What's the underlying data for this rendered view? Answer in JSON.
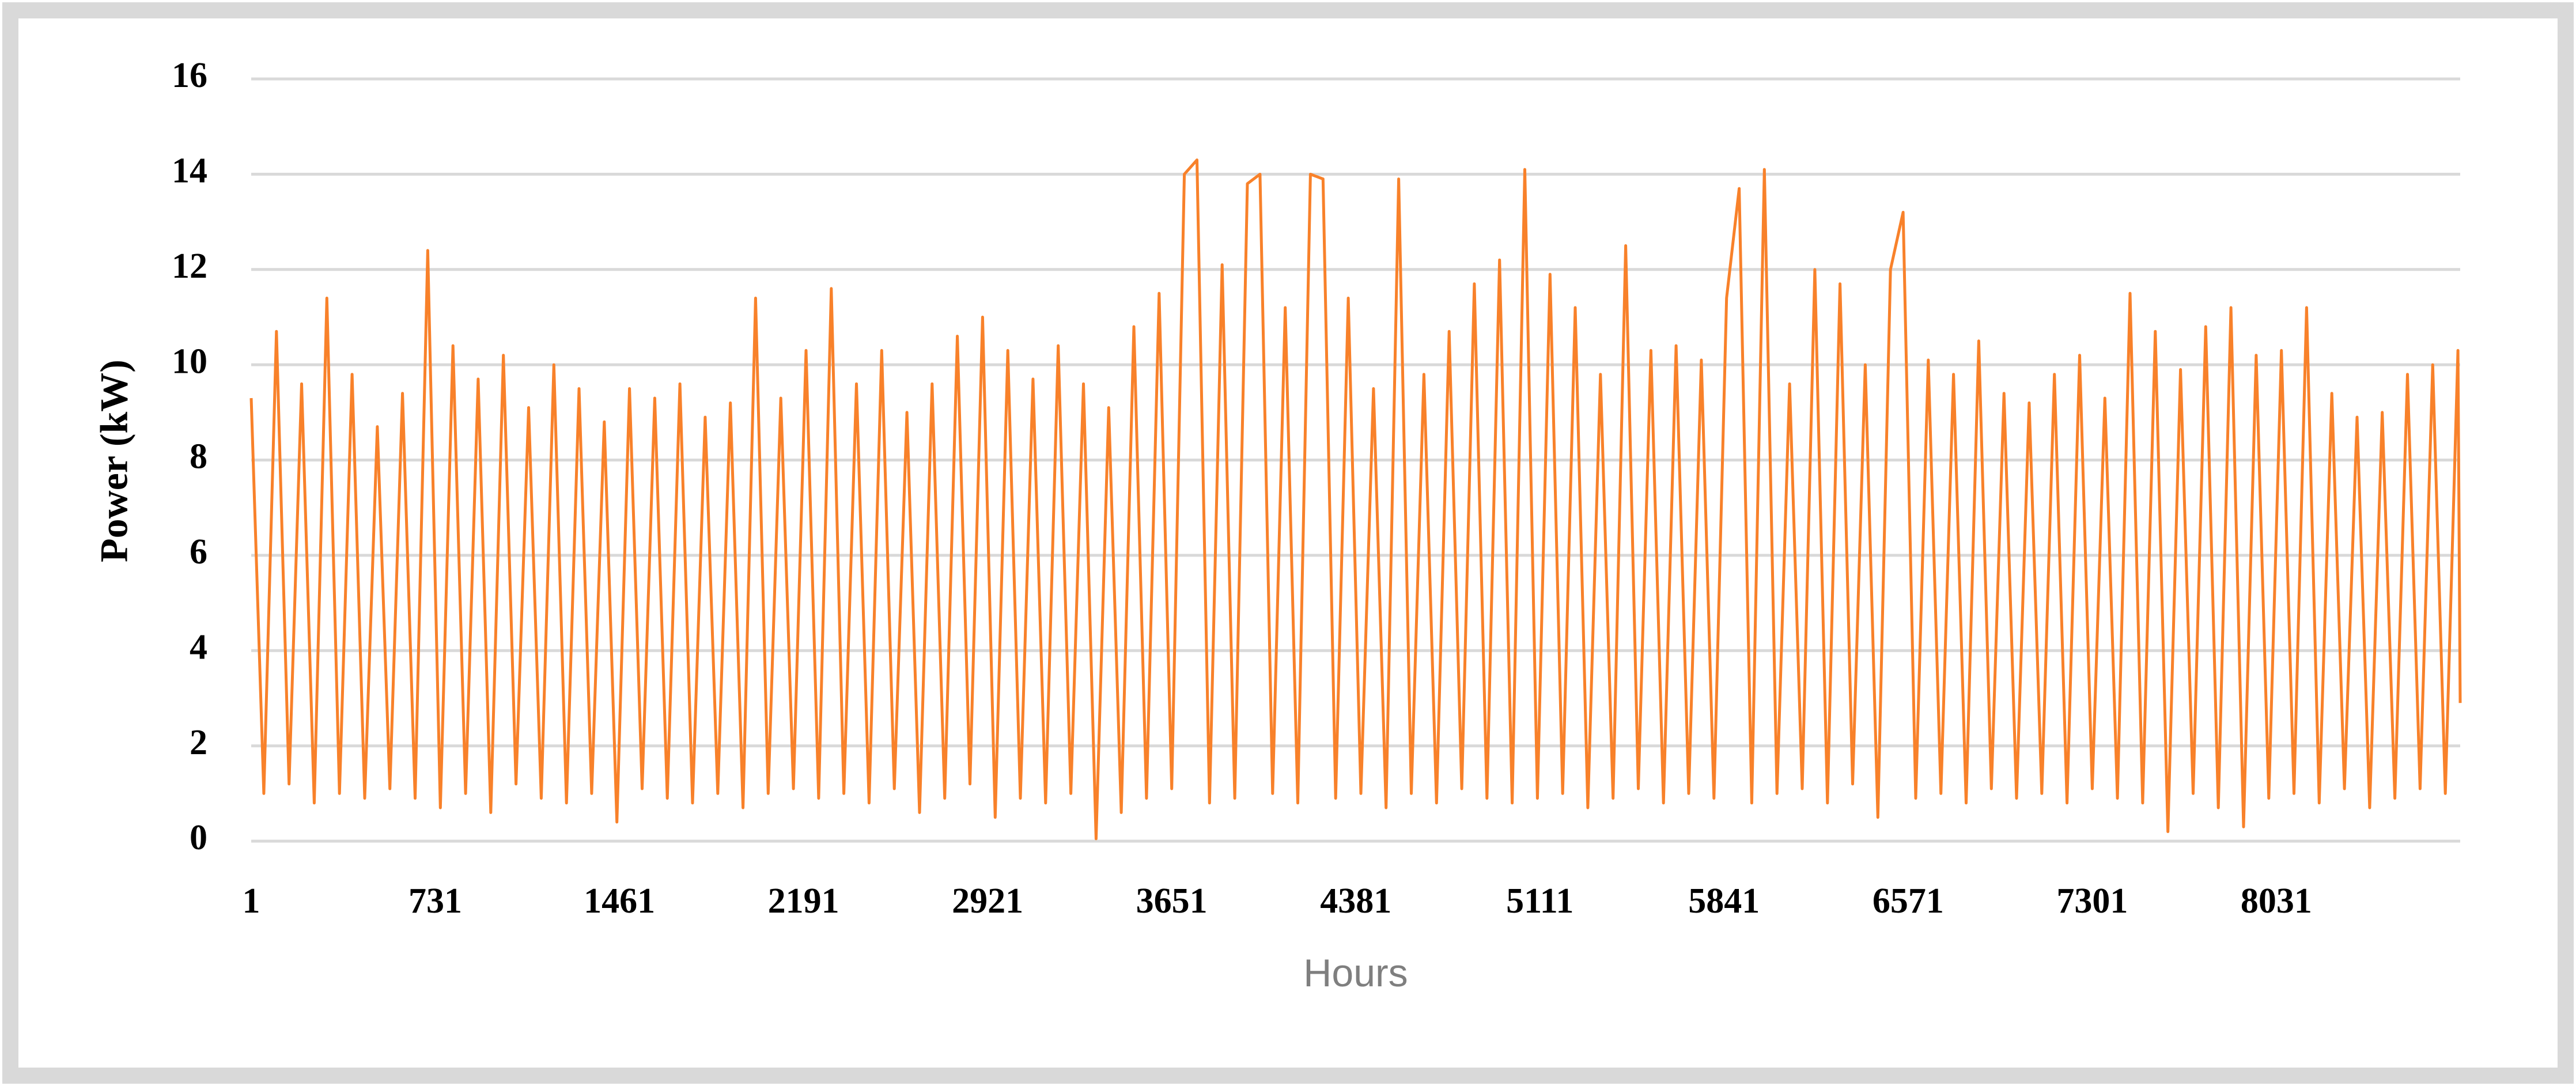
{
  "chart_data": {
    "type": "line",
    "x_label": "Hours",
    "y_label": "Power (kW)",
    "x": [
      1,
      51,
      101,
      151,
      201,
      251,
      301,
      351,
      401,
      451,
      501,
      551,
      601,
      651,
      701,
      751,
      801,
      851,
      901,
      951,
      1001,
      1051,
      1101,
      1151,
      1201,
      1251,
      1301,
      1351,
      1401,
      1451,
      1501,
      1551,
      1601,
      1651,
      1701,
      1751,
      1801,
      1851,
      1901,
      1951,
      2001,
      2051,
      2101,
      2151,
      2201,
      2251,
      2301,
      2351,
      2401,
      2451,
      2501,
      2551,
      2601,
      2651,
      2701,
      2751,
      2801,
      2851,
      2901,
      2951,
      3001,
      3051,
      3101,
      3151,
      3201,
      3251,
      3301,
      3351,
      3401,
      3451,
      3501,
      3551,
      3601,
      3651,
      3701,
      3751,
      3801,
      3851,
      3901,
      3951,
      4001,
      4051,
      4101,
      4151,
      4201,
      4251,
      4301,
      4351,
      4401,
      4451,
      4501,
      4551,
      4601,
      4651,
      4701,
      4751,
      4801,
      4851,
      4901,
      4951,
      5001,
      5051,
      5101,
      5151,
      5201,
      5251,
      5301,
      5351,
      5401,
      5451,
      5501,
      5551,
      5601,
      5651,
      5701,
      5751,
      5801,
      5851,
      5901,
      5951,
      6001,
      6051,
      6101,
      6151,
      6201,
      6251,
      6301,
      6351,
      6401,
      6451,
      6501,
      6551,
      6601,
      6651,
      6701,
      6751,
      6801,
      6851,
      6901,
      6951,
      7001,
      7051,
      7101,
      7151,
      7201,
      7251,
      7301,
      7351,
      7401,
      7451,
      7501,
      7551,
      7601,
      7651,
      7701,
      7751,
      7801,
      7851,
      7901,
      7951,
      8001,
      8051,
      8101,
      8151,
      8201,
      8251,
      8301,
      8351,
      8401,
      8451,
      8501,
      8551,
      8601,
      8651,
      8701,
      8751,
      8760
    ],
    "values": [
      9.3,
      1.0,
      10.7,
      1.2,
      9.6,
      0.8,
      11.4,
      1.0,
      9.8,
      0.9,
      8.7,
      1.1,
      9.4,
      0.9,
      12.4,
      0.7,
      10.4,
      1.0,
      9.7,
      0.6,
      10.2,
      1.2,
      9.1,
      0.9,
      10.0,
      0.8,
      9.5,
      1.0,
      8.8,
      0.4,
      9.5,
      1.1,
      9.3,
      0.9,
      9.6,
      0.8,
      8.9,
      1.0,
      9.2,
      0.7,
      11.4,
      1.0,
      9.3,
      1.1,
      10.3,
      0.9,
      11.6,
      1.0,
      9.6,
      0.8,
      10.3,
      1.1,
      9.0,
      0.6,
      9.6,
      0.9,
      10.6,
      1.2,
      11.0,
      0.5,
      10.3,
      0.9,
      9.7,
      0.8,
      10.4,
      1.0,
      9.6,
      0.05,
      9.1,
      0.6,
      10.8,
      0.9,
      11.5,
      1.1,
      14.0,
      14.3,
      0.8,
      12.1,
      0.9,
      13.8,
      14.0,
      1.0,
      11.2,
      0.8,
      14.0,
      13.9,
      0.9,
      11.4,
      1.0,
      9.5,
      0.7,
      13.9,
      1.0,
      9.8,
      0.8,
      10.7,
      1.1,
      11.7,
      0.9,
      12.2,
      0.8,
      14.1,
      0.9,
      11.9,
      1.0,
      11.2,
      0.7,
      9.8,
      0.9,
      12.5,
      1.1,
      10.3,
      0.8,
      10.4,
      1.0,
      10.1,
      0.9,
      11.4,
      13.7,
      0.8,
      14.1,
      1.0,
      9.6,
      1.1,
      12.0,
      0.8,
      11.7,
      1.2,
      10.0,
      0.5,
      12.0,
      13.2,
      0.9,
      10.1,
      1.0,
      9.8,
      0.8,
      10.5,
      1.1,
      9.4,
      0.9,
      9.2,
      1.0,
      9.8,
      0.8,
      10.2,
      1.1,
      9.3,
      0.9,
      11.5,
      0.8,
      10.7,
      0.2,
      9.9,
      1.0,
      10.8,
      0.7,
      11.2,
      0.3,
      10.2,
      0.9,
      10.3,
      1.0,
      11.2,
      0.8,
      9.4,
      1.1,
      8.9,
      0.7,
      9.0,
      0.9,
      9.8,
      1.1,
      10.0,
      1.0,
      10.3,
      2.9
    ],
    "color": "#f8812a",
    "xlim": [
      1,
      8760
    ],
    "xticks": [
      1,
      731,
      1461,
      2191,
      2921,
      3651,
      4381,
      5111,
      5841,
      6571,
      7301,
      8031
    ],
    "ylim": [
      0,
      16
    ],
    "yticks": [
      0,
      2,
      4,
      6,
      8,
      10,
      12,
      14,
      16
    ],
    "grid": true
  }
}
